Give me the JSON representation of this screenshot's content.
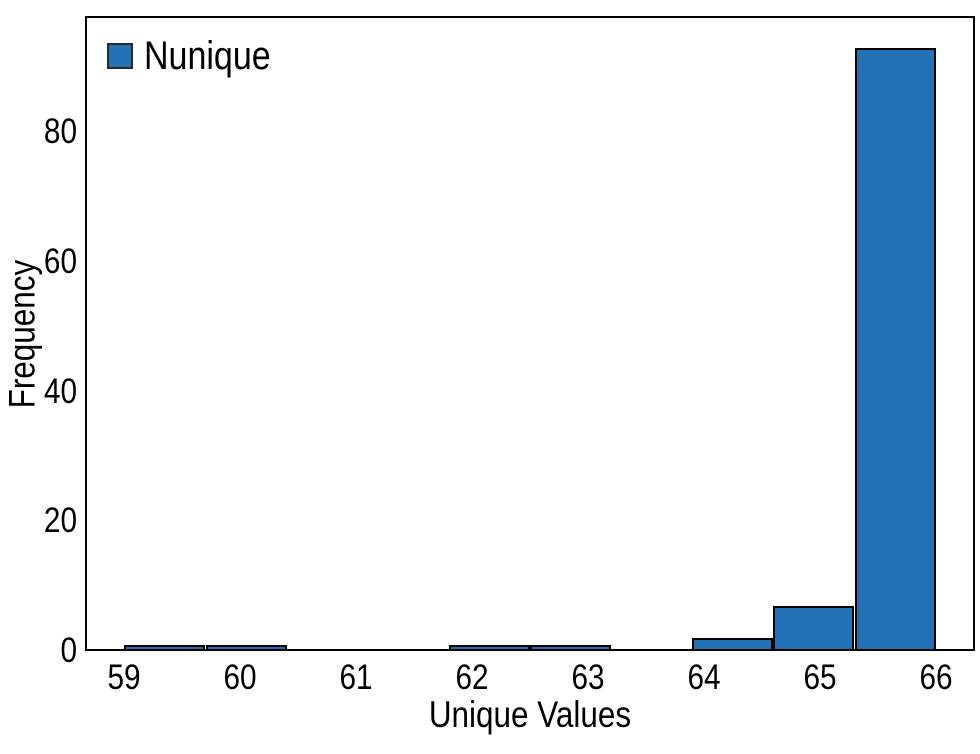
{
  "figure": {
    "background": "#ffffff",
    "spine_color": "#000000"
  },
  "chart_data": {
    "type": "bar",
    "subtype": "histogram",
    "title": "",
    "xlabel": "Unique Values",
    "ylabel": "Frequency",
    "bar_fill": "#2272b5",
    "bar_edge": "#000000",
    "bin_edges": [
      59.0,
      59.7,
      60.4,
      61.1,
      61.8,
      62.5,
      63.2,
      63.9,
      64.6,
      65.3,
      66.0
    ],
    "counts": [
      1,
      1,
      0,
      0,
      1,
      1,
      0,
      2,
      7,
      93
    ],
    "xticks": [
      "59",
      "60",
      "61",
      "62",
      "63",
      "64",
      "65",
      "66"
    ],
    "xtick_values": [
      59,
      60,
      61,
      62,
      63,
      64,
      65,
      66
    ],
    "yticks": [
      "0",
      "20",
      "40",
      "60",
      "80"
    ],
    "ytick_values": [
      0,
      20,
      40,
      60,
      80
    ],
    "xlim": [
      58.66,
      66.34
    ],
    "ylim": [
      0,
      97.9
    ],
    "grid": false,
    "legend": {
      "position": "upper-left",
      "entries": [
        {
          "label": "Nunique",
          "color": "#2272b5"
        }
      ]
    }
  }
}
